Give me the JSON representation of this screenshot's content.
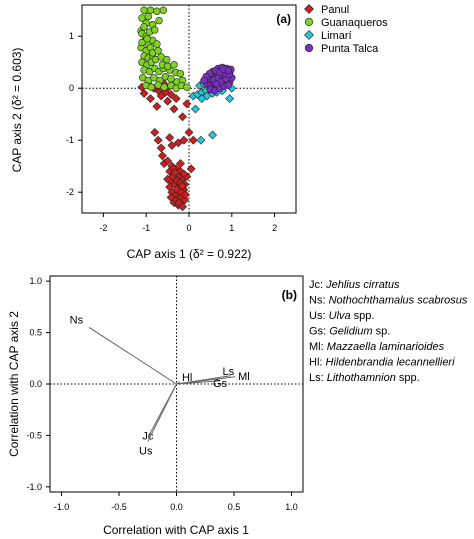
{
  "chart_data": [
    {
      "type": "scatter",
      "panel_label": "(a)",
      "xlabel": "CAP axis 1 (δ² = 0.922)",
      "ylabel": "CAP axis 2 (δ² = 0.603)",
      "xlim": [
        -2.5,
        2.5
      ],
      "ylim": [
        -2.4,
        1.6
      ],
      "xticks": [
        "-2",
        "-1",
        "0",
        "1",
        "2"
      ],
      "yticks": [
        "-2",
        "-1",
        "0",
        "1"
      ],
      "reference_lines": {
        "x": 0,
        "y": 0,
        "style": "dotted"
      },
      "legend": {
        "placement": "top-right-outside"
      },
      "series": [
        {
          "name": "Panul",
          "color": "#cc1f1f",
          "marker": "diamond",
          "points": [
            [
              -1.1,
              0.02
            ],
            [
              -0.95,
              0.08
            ],
            [
              -0.82,
              0.0
            ],
            [
              -0.7,
              -0.06
            ],
            [
              -0.6,
              0.1
            ],
            [
              -0.55,
              -0.08
            ],
            [
              -0.48,
              0.02
            ],
            [
              -1.05,
              -0.1
            ],
            [
              -0.9,
              -0.2
            ],
            [
              -0.75,
              -0.35
            ],
            [
              -0.65,
              -0.15
            ],
            [
              -0.5,
              -0.25
            ],
            [
              -0.42,
              -0.12
            ],
            [
              -0.35,
              -0.4
            ],
            [
              -0.3,
              -0.2
            ],
            [
              -0.15,
              -0.55
            ],
            [
              -0.05,
              -0.3
            ],
            [
              -0.8,
              -0.85
            ],
            [
              -0.72,
              -1.0
            ],
            [
              -0.65,
              -1.15
            ],
            [
              -0.62,
              -1.3
            ],
            [
              -0.58,
              -1.45
            ],
            [
              -0.45,
              -0.95
            ],
            [
              -0.4,
              -1.1
            ],
            [
              -0.25,
              -1.05
            ],
            [
              -0.12,
              -1.0
            ],
            [
              0.0,
              -0.85
            ],
            [
              0.1,
              -1.0
            ],
            [
              -0.5,
              -1.4
            ],
            [
              -0.4,
              -1.5
            ],
            [
              -0.3,
              -1.55
            ],
            [
              -0.2,
              -1.45
            ],
            [
              -0.45,
              -1.6
            ],
            [
              -0.35,
              -1.65
            ],
            [
              -0.25,
              -1.7
            ],
            [
              -0.15,
              -1.75
            ],
            [
              -0.42,
              -1.8
            ],
            [
              -0.32,
              -1.85
            ],
            [
              -0.22,
              -1.9
            ],
            [
              -0.12,
              -1.95
            ],
            [
              -0.4,
              -2.0
            ],
            [
              -0.3,
              -2.05
            ],
            [
              -0.2,
              -2.1
            ],
            [
              -0.1,
              -2.15
            ],
            [
              -0.35,
              -2.2
            ],
            [
              -0.25,
              -2.25
            ],
            [
              -0.15,
              -2.28
            ],
            [
              -0.28,
              -1.95
            ],
            [
              -0.18,
              -2.0
            ],
            [
              -0.38,
              -1.7
            ],
            [
              -0.28,
              -1.78
            ],
            [
              -0.2,
              -1.6
            ],
            [
              -0.1,
              -1.85
            ],
            [
              -0.05,
              -1.7
            ],
            [
              -0.45,
              -1.9
            ],
            [
              -0.36,
              -1.55
            ],
            [
              -0.08,
              -2.05
            ],
            [
              -0.3,
              -2.15
            ],
            [
              -0.2,
              -1.82
            ],
            [
              -0.42,
              -2.1
            ],
            [
              -0.12,
              -1.65
            ],
            [
              -0.24,
              -2.2
            ],
            [
              -0.33,
              -1.62
            ],
            [
              -0.16,
              -1.88
            ],
            [
              0.05,
              -1.55
            ],
            [
              -0.5,
              -1.75
            ]
          ]
        },
        {
          "name": "Guanaqueros",
          "color": "#7ed321",
          "marker": "circle",
          "points": [
            [
              -1.05,
              1.5
            ],
            [
              -0.9,
              1.5
            ],
            [
              -0.75,
              1.48
            ],
            [
              -0.6,
              1.5
            ],
            [
              -1.1,
              1.35
            ],
            [
              -0.95,
              1.38
            ],
            [
              -1.0,
              1.25
            ],
            [
              -0.85,
              1.22
            ],
            [
              -1.12,
              1.1
            ],
            [
              -0.7,
              1.3
            ],
            [
              -1.1,
              1.05
            ],
            [
              -1.0,
              1.0
            ],
            [
              -0.92,
              1.08
            ],
            [
              -1.05,
              0.9
            ],
            [
              -0.95,
              0.85
            ],
            [
              -0.85,
              0.92
            ],
            [
              -1.12,
              0.78
            ],
            [
              -1.0,
              0.72
            ],
            [
              -0.9,
              0.78
            ],
            [
              -0.75,
              0.85
            ],
            [
              -1.05,
              0.62
            ],
            [
              -0.95,
              0.58
            ],
            [
              -0.85,
              0.62
            ],
            [
              -1.1,
              0.5
            ],
            [
              -0.98,
              0.45
            ],
            [
              -0.88,
              0.5
            ],
            [
              -0.78,
              0.55
            ],
            [
              -0.65,
              0.6
            ],
            [
              -0.52,
              0.55
            ],
            [
              -1.05,
              0.35
            ],
            [
              -0.92,
              0.32
            ],
            [
              -0.8,
              0.38
            ],
            [
              -0.7,
              0.32
            ],
            [
              -0.6,
              0.38
            ],
            [
              -0.45,
              0.35
            ],
            [
              -0.3,
              0.3
            ],
            [
              -1.08,
              0.2
            ],
            [
              -0.95,
              0.15
            ],
            [
              -0.82,
              0.2
            ],
            [
              -0.68,
              0.15
            ],
            [
              -0.55,
              0.22
            ],
            [
              -0.42,
              0.18
            ],
            [
              -0.28,
              0.12
            ],
            [
              -0.15,
              0.15
            ],
            [
              -1.0,
              0.05
            ],
            [
              -0.88,
              0.02
            ],
            [
              -0.72,
              0.06
            ],
            [
              -0.58,
              0.02
            ],
            [
              -0.42,
              0.05
            ],
            [
              -0.3,
              0.0
            ],
            [
              -0.18,
              0.05
            ],
            [
              -0.05,
              0.02
            ],
            [
              -1.05,
              1.18
            ],
            [
              -0.8,
              1.12
            ],
            [
              -0.98,
              0.95
            ],
            [
              -1.1,
              0.88
            ],
            [
              -0.85,
              0.68
            ],
            [
              -0.72,
              0.72
            ],
            [
              -0.62,
              0.45
            ],
            [
              -0.5,
              0.42
            ],
            [
              -0.35,
              0.45
            ],
            [
              -0.2,
              0.28
            ]
          ]
        },
        {
          "name": "Limarí",
          "color": "#2bc4d8",
          "marker": "diamond",
          "points": [
            [
              0.1,
              -0.15
            ],
            [
              0.2,
              -0.12
            ],
            [
              0.3,
              -0.08
            ],
            [
              0.4,
              -0.05
            ],
            [
              0.5,
              -0.02
            ],
            [
              0.25,
              0.05
            ],
            [
              0.35,
              0.08
            ],
            [
              0.45,
              0.12
            ],
            [
              0.55,
              0.15
            ],
            [
              0.65,
              0.18
            ],
            [
              0.75,
              0.2
            ],
            [
              0.6,
              0.05
            ],
            [
              0.7,
              0.08
            ],
            [
              0.8,
              0.12
            ],
            [
              0.9,
              0.1
            ],
            [
              0.5,
              0.2
            ],
            [
              0.62,
              0.25
            ],
            [
              0.72,
              0.28
            ],
            [
              0.85,
              0.25
            ],
            [
              0.95,
              0.22
            ],
            [
              0.55,
              -0.1
            ],
            [
              0.65,
              -0.08
            ],
            [
              0.78,
              -0.05
            ],
            [
              0.42,
              -0.15
            ],
            [
              0.3,
              -0.2
            ],
            [
              0.15,
              -0.4
            ],
            [
              0.55,
              -0.9
            ],
            [
              0.28,
              -1.0
            ],
            [
              0.95,
              -0.2
            ],
            [
              1.0,
              0.0
            ]
          ]
        },
        {
          "name": "Punta Talca",
          "color": "#7b2fc2",
          "marker": "circle",
          "points": [
            [
              0.4,
              0.1
            ],
            [
              0.5,
              0.15
            ],
            [
              0.6,
              0.2
            ],
            [
              0.7,
              0.25
            ],
            [
              0.8,
              0.3
            ],
            [
              0.9,
              0.35
            ],
            [
              0.45,
              0.2
            ],
            [
              0.55,
              0.25
            ],
            [
              0.65,
              0.3
            ],
            [
              0.75,
              0.35
            ],
            [
              0.85,
              0.32
            ],
            [
              0.95,
              0.3
            ],
            [
              0.5,
              0.05
            ],
            [
              0.6,
              0.1
            ],
            [
              0.7,
              0.15
            ],
            [
              0.8,
              0.2
            ],
            [
              0.9,
              0.22
            ],
            [
              0.65,
              0.02
            ],
            [
              0.75,
              0.05
            ],
            [
              0.85,
              0.1
            ],
            [
              0.95,
              0.12
            ],
            [
              0.55,
              0.32
            ],
            [
              0.68,
              0.38
            ],
            [
              0.78,
              0.4
            ],
            [
              0.88,
              0.38
            ],
            [
              0.98,
              0.36
            ],
            [
              0.5,
              -0.02
            ],
            [
              0.6,
              -0.05
            ],
            [
              0.72,
              0.0
            ],
            [
              0.82,
              0.04
            ],
            [
              0.92,
              0.06
            ],
            [
              1.0,
              0.2
            ],
            [
              0.58,
              0.16
            ],
            [
              0.68,
              0.2
            ],
            [
              0.78,
              0.26
            ],
            [
              0.86,
              0.18
            ],
            [
              0.74,
              0.12
            ],
            [
              0.64,
              0.08
            ],
            [
              0.84,
              0.28
            ],
            [
              0.94,
              0.26
            ],
            [
              0.48,
              0.28
            ],
            [
              0.4,
              0.22
            ],
            [
              0.35,
              0.15
            ],
            [
              0.62,
              0.34
            ],
            [
              0.72,
              0.3
            ],
            [
              0.82,
              0.36
            ],
            [
              0.92,
              0.34
            ]
          ]
        }
      ]
    },
    {
      "type": "biplot",
      "panel_label": "(b)",
      "xlabel": "Correlation with CAP axis 1",
      "ylabel": "Correlation with CAP axis 2",
      "xlim": [
        -1.1,
        1.1
      ],
      "ylim": [
        -1.05,
        1.05
      ],
      "xticks": [
        "-1.0",
        "-0.5",
        "0.0",
        "0.5",
        "1.0"
      ],
      "yticks": [
        "-1.0",
        "-0.5",
        "0.0",
        "0.5",
        "1.0"
      ],
      "reference_lines": {
        "x": 0,
        "y": 0,
        "style": "dotted"
      },
      "vectors": [
        {
          "label": "Ns",
          "x": -0.76,
          "y": 0.55
        },
        {
          "label": "Hl",
          "x": 0.03,
          "y": 0.02
        },
        {
          "label": "Gs",
          "x": 0.37,
          "y": 0.03
        },
        {
          "label": "Ls",
          "x": 0.47,
          "y": 0.08
        },
        {
          "label": "Ml",
          "x": 0.51,
          "y": 0.07
        },
        {
          "label": "Jc",
          "x": -0.24,
          "y": -0.5
        },
        {
          "label": "Us",
          "x": -0.25,
          "y": -0.56
        }
      ],
      "key": [
        {
          "code": "Jc:",
          "name": "Jehlius cirratus",
          "suffix": ""
        },
        {
          "code": "Ns:",
          "name": "Nothochthamalus scabrosus",
          "suffix": ""
        },
        {
          "code": "Us:",
          "name": "Ulva",
          "suffix": " spp."
        },
        {
          "code": "Gs:",
          "name": "Gelidium",
          "suffix": " sp."
        },
        {
          "code": "Ml:",
          "name": "Mazzaella laminarioides",
          "suffix": ""
        },
        {
          "code": "Hl:",
          "name": "Hildenbrandia lecannellieri",
          "suffix": ""
        },
        {
          "code": "Ls:",
          "name": "Lithothamnion",
          "suffix": " spp."
        }
      ]
    }
  ]
}
